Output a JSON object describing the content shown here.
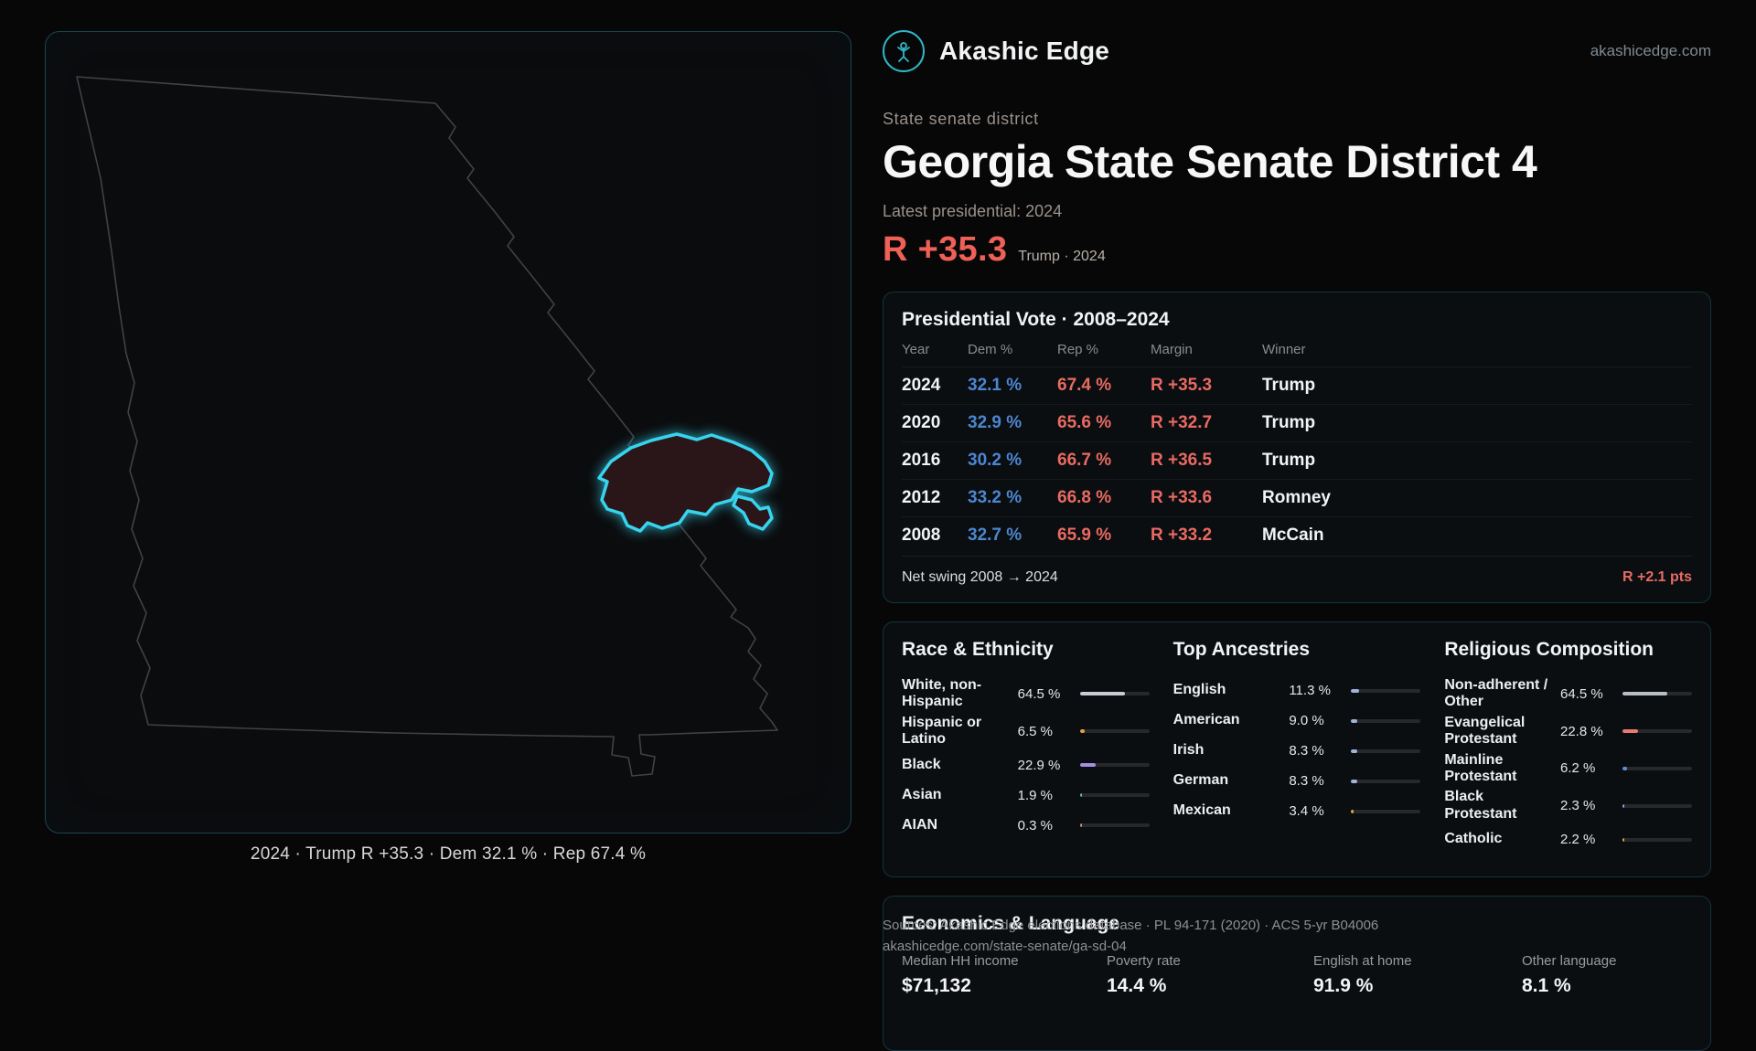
{
  "brand": {
    "name": "Akashic Edge",
    "site": "akashicedge.com"
  },
  "map": {
    "caption": "2024 · Trump R +35.3 · Dem 32.1 % · Rep 67.4 %"
  },
  "header": {
    "kicker": "State senate district",
    "title": "Georgia State Senate District 4",
    "latest": "Latest presidential: 2024",
    "margin": "R +35.3",
    "margin_note": "Trump · 2024"
  },
  "presidential": {
    "title": "Presidential Vote · 2008–2024",
    "columns": [
      "Year",
      "Dem %",
      "Rep %",
      "Margin",
      "Winner"
    ],
    "rows": [
      {
        "year": "2024",
        "dem": "32.1 %",
        "rep": "67.4 %",
        "margin": "R +35.3",
        "winner": "Trump"
      },
      {
        "year": "2020",
        "dem": "32.9 %",
        "rep": "65.6 %",
        "margin": "R +32.7",
        "winner": "Trump"
      },
      {
        "year": "2016",
        "dem": "30.2 %",
        "rep": "66.7 %",
        "margin": "R +36.5",
        "winner": "Trump"
      },
      {
        "year": "2012",
        "dem": "33.2 %",
        "rep": "66.8 %",
        "margin": "R +33.6",
        "winner": "Romney"
      },
      {
        "year": "2008",
        "dem": "32.7 %",
        "rep": "65.9 %",
        "margin": "R +33.2",
        "winner": "McCain"
      }
    ],
    "swing_label": "Net swing 2008 → 2024",
    "swing_value": "R +2.1 pts"
  },
  "race": {
    "title": "Race & Ethnicity",
    "rows": [
      {
        "label": "White, non-Hispanic",
        "value": "64.5 %",
        "pct": 64.5,
        "color": "#c9cdd3"
      },
      {
        "label": "Hispanic or Latino",
        "value": "6.5 %",
        "pct": 6.5,
        "color": "#e3a13e"
      },
      {
        "label": "Black",
        "value": "22.9 %",
        "pct": 22.9,
        "color": "#a48fe0"
      },
      {
        "label": "Asian",
        "value": "1.9 %",
        "pct": 1.9,
        "color": "#4fc3a1"
      },
      {
        "label": "AIAN",
        "value": "0.3 %",
        "pct": 0.3,
        "color": "#d98b7a"
      }
    ]
  },
  "ancestries": {
    "title": "Top Ancestries",
    "rows": [
      {
        "label": "English",
        "value": "11.3 %",
        "pct": 11.3,
        "color": "#9fb4d8"
      },
      {
        "label": "American",
        "value": "9.0 %",
        "pct": 9.0,
        "color": "#9fb4d8"
      },
      {
        "label": "Irish",
        "value": "8.3 %",
        "pct": 8.3,
        "color": "#9fb4d8"
      },
      {
        "label": "German",
        "value": "8.3 %",
        "pct": 8.3,
        "color": "#9fb4d8"
      },
      {
        "label": "Mexican",
        "value": "3.4 %",
        "pct": 3.4,
        "color": "#e3a13e"
      }
    ]
  },
  "religion": {
    "title": "Religious Composition",
    "rows": [
      {
        "label": "Non-adherent / Other",
        "value": "64.5 %",
        "pct": 64.5,
        "color": "#b9bec6"
      },
      {
        "label": "Evangelical Protestant",
        "value": "22.8 %",
        "pct": 22.8,
        "color": "#e87a74"
      },
      {
        "label": "Mainline Protestant",
        "value": "6.2 %",
        "pct": 6.2,
        "color": "#5f8fd9"
      },
      {
        "label": "Black Protestant",
        "value": "2.3 %",
        "pct": 2.3,
        "color": "#a48fe0"
      },
      {
        "label": "Catholic",
        "value": "2.2 %",
        "pct": 2.2,
        "color": "#e3a13e"
      }
    ]
  },
  "economics": {
    "title": "Economics & Language",
    "stats": [
      {
        "label": "Median HH income",
        "value": "$71,132"
      },
      {
        "label": "Poverty rate",
        "value": "14.4 %"
      },
      {
        "label": "English at home",
        "value": "91.9 %"
      },
      {
        "label": "Other language",
        "value": "8.1 %"
      }
    ]
  },
  "footer": {
    "sources": "Sources: Akashic Edge elections database · PL 94-171 (2020) · ACS 5-yr B04006",
    "url": "akashicedge.com/state-senate/ga-sd-04"
  },
  "colors": {
    "accent_red": "#ef6057",
    "dem_blue": "#4d86d1",
    "district_cyan": "#38d4ee",
    "card_border": "#14343d"
  }
}
